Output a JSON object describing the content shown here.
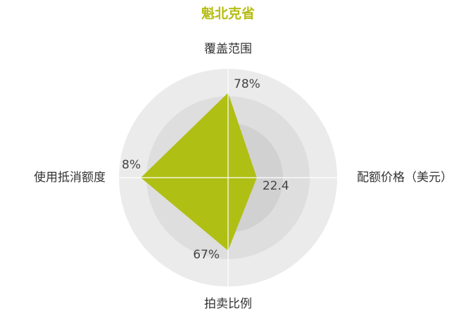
{
  "chart_data": {
    "type": "radar",
    "title": "魁北克省",
    "categories": [
      "覆盖范围",
      "配额价格（美元）",
      "拍卖比例",
      "使用抵消额度"
    ],
    "values": [
      78,
      22.4,
      67,
      8
    ],
    "value_labels": [
      "78%",
      "22.4",
      "67%",
      "8%"
    ],
    "axis_max": [
      100,
      85,
      100,
      10
    ],
    "color": "#b0bf14"
  }
}
